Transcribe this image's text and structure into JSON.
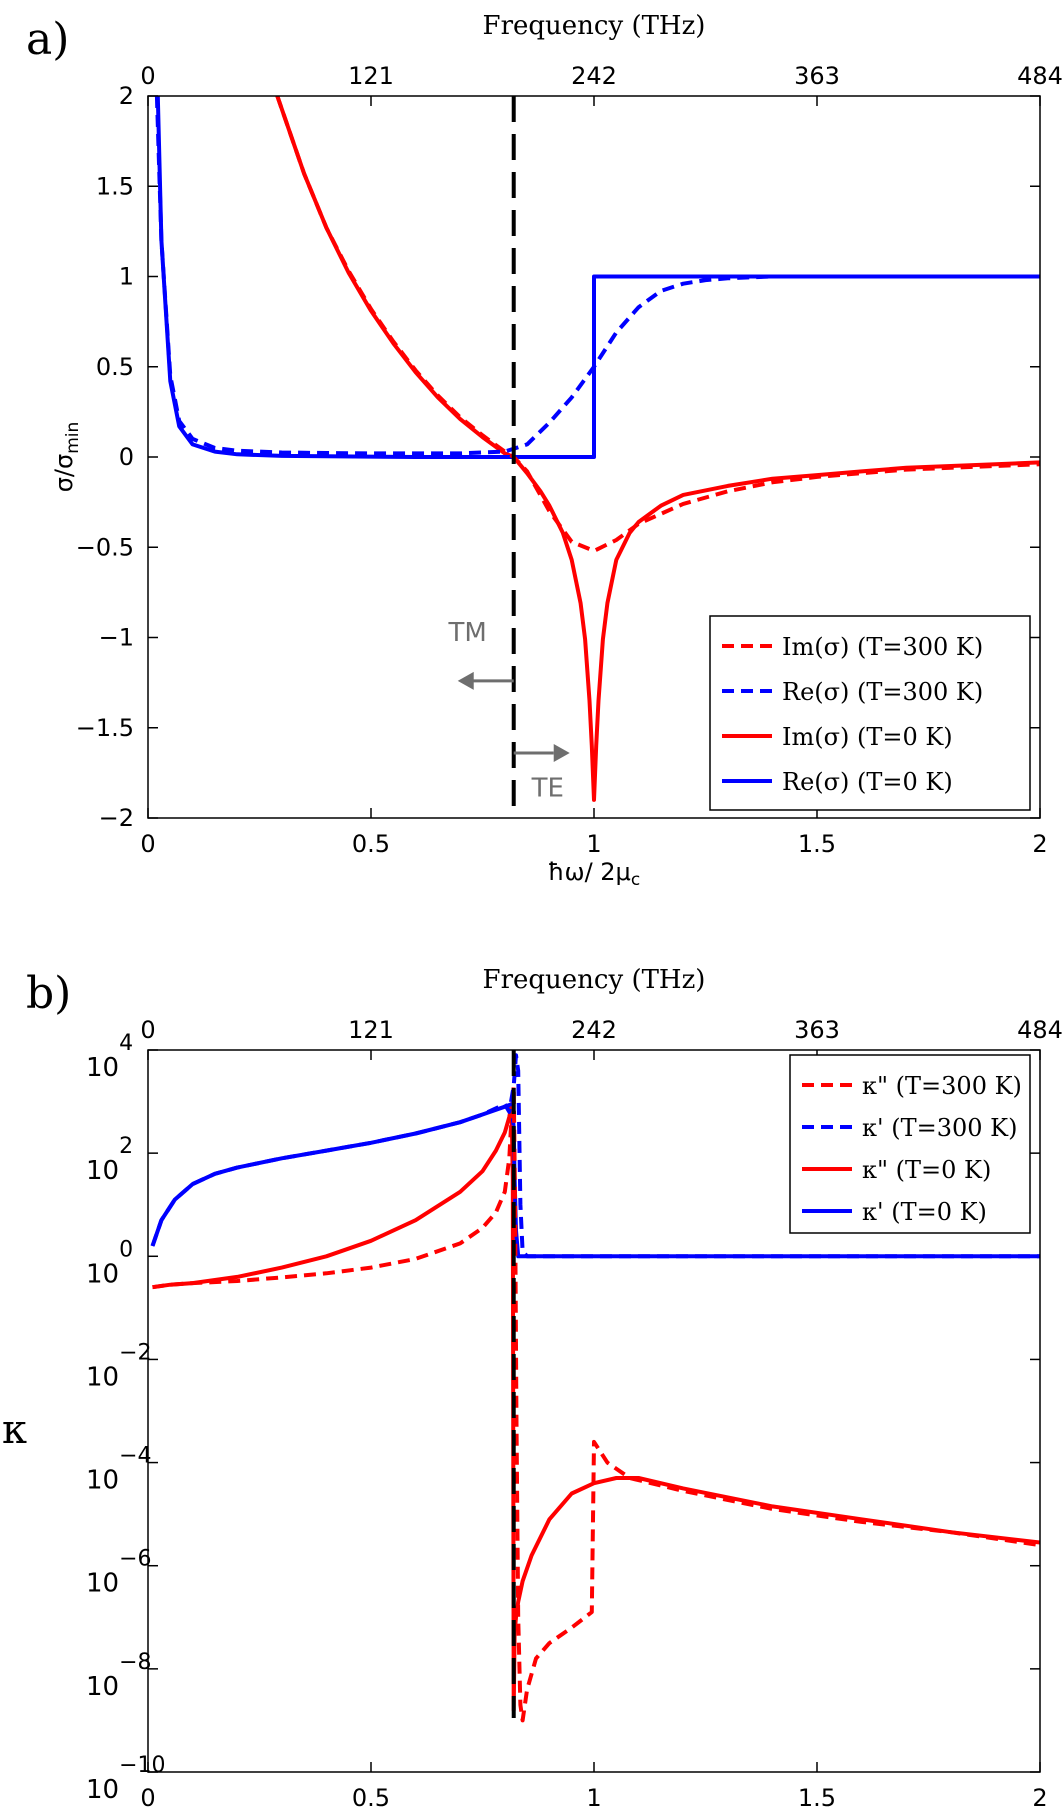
{
  "chart_data": [
    {
      "type": "line",
      "panel_label": "a)",
      "top_axis_label": "Frequency (THz)",
      "top_ticks": [
        "0",
        "121",
        "242",
        "363",
        "484"
      ],
      "xlabel": "ħω/ 2μ",
      "xlabel_sub": "c",
      "ylabel": "σ/σ",
      "ylabel_sub": "min",
      "xlim": [
        0,
        2
      ],
      "ylim": [
        -2,
        2
      ],
      "x_ticks": [
        "0",
        "0.5",
        "1",
        "1.5",
        "2"
      ],
      "y_ticks": [
        "−2",
        "−1.5",
        "−1",
        "−0.5",
        "0",
        "0.5",
        "1",
        "1.5",
        "2"
      ],
      "y_tick_values": [
        -2,
        -1.5,
        -1,
        -0.5,
        0,
        0.5,
        1,
        1.5,
        2
      ],
      "vline_x": 0.82,
      "annotations": {
        "tm": "TM",
        "te": "TE"
      },
      "colors": {
        "red": "#ff0000",
        "blue": "#0000ff",
        "black": "#000000",
        "gray": "#6e6e6e"
      },
      "series": [
        {
          "name": "Im(σ) (T=300 K)",
          "color": "#ff0000",
          "dash": true,
          "x": [
            0.29,
            0.35,
            0.4,
            0.45,
            0.5,
            0.55,
            0.6,
            0.65,
            0.7,
            0.75,
            0.8,
            0.82,
            0.85,
            0.9,
            0.95,
            1.0,
            1.05,
            1.1,
            1.2,
            1.3,
            1.4,
            1.5,
            1.6,
            1.7,
            1.8,
            1.9,
            2.0
          ],
          "y": [
            2.0,
            1.57,
            1.27,
            1.03,
            0.82,
            0.64,
            0.48,
            0.34,
            0.22,
            0.12,
            0.03,
            0.0,
            -0.08,
            -0.3,
            -0.47,
            -0.52,
            -0.46,
            -0.37,
            -0.26,
            -0.19,
            -0.14,
            -0.11,
            -0.09,
            -0.07,
            -0.06,
            -0.05,
            -0.04
          ]
        },
        {
          "name": "Re(σ) (T=300 K)",
          "color": "#0000ff",
          "dash": true,
          "x": [
            0.02,
            0.03,
            0.05,
            0.07,
            0.1,
            0.15,
            0.2,
            0.3,
            0.4,
            0.5,
            0.6,
            0.7,
            0.8,
            0.85,
            0.9,
            0.95,
            1.0,
            1.05,
            1.1,
            1.15,
            1.2,
            1.25,
            1.3,
            1.4,
            1.5,
            2.0
          ],
          "y": [
            2.0,
            1.2,
            0.45,
            0.2,
            0.1,
            0.05,
            0.035,
            0.025,
            0.022,
            0.02,
            0.02,
            0.02,
            0.03,
            0.07,
            0.19,
            0.33,
            0.5,
            0.69,
            0.83,
            0.92,
            0.96,
            0.98,
            0.99,
            1.0,
            1.0,
            1.0
          ]
        },
        {
          "name": "Im(σ) (T=0 K)",
          "color": "#ff0000",
          "dash": false,
          "x": [
            0.29,
            0.35,
            0.4,
            0.45,
            0.5,
            0.55,
            0.6,
            0.65,
            0.7,
            0.75,
            0.8,
            0.82,
            0.85,
            0.88,
            0.9,
            0.93,
            0.95,
            0.97,
            0.98,
            0.99,
            0.995,
            1.0,
            1.005,
            1.01,
            1.02,
            1.03,
            1.05,
            1.08,
            1.1,
            1.15,
            1.2,
            1.3,
            1.4,
            1.5,
            1.6,
            1.7,
            1.8,
            1.9,
            2.0
          ],
          "y": [
            2.0,
            1.57,
            1.27,
            1.02,
            0.81,
            0.63,
            0.47,
            0.33,
            0.21,
            0.11,
            0.02,
            0.0,
            -0.09,
            -0.19,
            -0.27,
            -0.42,
            -0.57,
            -0.81,
            -1.01,
            -1.35,
            -1.6,
            -1.9,
            -1.6,
            -1.35,
            -1.01,
            -0.81,
            -0.57,
            -0.42,
            -0.36,
            -0.27,
            -0.21,
            -0.16,
            -0.12,
            -0.1,
            -0.08,
            -0.06,
            -0.05,
            -0.04,
            -0.03
          ]
        },
        {
          "name": "Re(σ) (T=0 K)",
          "color": "#0000ff",
          "dash": false,
          "x": [
            0.022,
            0.03,
            0.05,
            0.07,
            0.1,
            0.15,
            0.2,
            0.3,
            0.4,
            0.6,
            0.8,
            1.0,
            1.0,
            1.5,
            2.0
          ],
          "y": [
            2.0,
            1.2,
            0.42,
            0.17,
            0.07,
            0.03,
            0.015,
            0.006,
            0.004,
            0.0,
            0.0,
            0.0,
            1.0,
            1.0,
            1.0
          ]
        }
      ]
    },
    {
      "type": "line",
      "panel_label": "b)",
      "top_axis_label": "Frequency (THz)",
      "top_ticks": [
        "0",
        "121",
        "242",
        "363",
        "484"
      ],
      "xlabel": "ħω/ 2μ",
      "xlabel_sub": "c",
      "ylabel": "κ",
      "yscale": "log",
      "xlim": [
        0,
        2
      ],
      "ylim_exp": [
        -10,
        4
      ],
      "x_ticks": [
        "0",
        "0.5",
        "1",
        "1.5",
        "2"
      ],
      "y_tick_base": "10",
      "y_tick_exps": [
        "−10",
        "−8",
        "−6",
        "−4",
        "−2",
        "0",
        "2",
        "4"
      ],
      "y_tick_values": [
        -10,
        -8,
        -6,
        -4,
        -2,
        0,
        2,
        4
      ],
      "vline_x": 0.82,
      "series": [
        {
          "name": "κ\" (T=300 K)",
          "color": "#ff0000",
          "dash": true,
          "x": [
            0.01,
            0.05,
            0.1,
            0.2,
            0.3,
            0.4,
            0.5,
            0.6,
            0.7,
            0.75,
            0.78,
            0.8,
            0.81,
            0.815,
            0.82,
            0.823,
            0.826,
            0.83,
            0.835,
            0.84,
            0.85,
            0.87,
            0.9,
            0.95,
            0.98,
            0.995,
            1.0,
            1.03,
            1.08,
            1.2,
            1.4,
            1.6,
            1.8,
            2.0
          ],
          "y": [
            -0.6,
            -0.55,
            -0.52,
            -0.48,
            -0.41,
            -0.33,
            -0.22,
            -0.05,
            0.25,
            0.55,
            0.85,
            1.25,
            1.9,
            2.7,
            3.3,
            1.0,
            -3.0,
            -7.0,
            -8.7,
            -9.0,
            -8.4,
            -7.8,
            -7.5,
            -7.2,
            -7.0,
            -6.9,
            -3.6,
            -4.0,
            -4.3,
            -4.55,
            -4.9,
            -5.15,
            -5.35,
            -5.6
          ]
        },
        {
          "name": "κ' (T=300 K)",
          "color": "#0000ff",
          "dash": true,
          "x": [
            0.01,
            0.03,
            0.06,
            0.1,
            0.15,
            0.2,
            0.3,
            0.4,
            0.5,
            0.6,
            0.7,
            0.75,
            0.8,
            0.81,
            0.82,
            0.825,
            0.83,
            0.835,
            0.84,
            0.85,
            2.0
          ],
          "y": [
            0.2,
            0.7,
            1.1,
            1.4,
            1.6,
            1.72,
            1.9,
            2.05,
            2.2,
            2.38,
            2.6,
            2.75,
            2.95,
            2.8,
            3.3,
            3.9,
            3.6,
            1.0,
            0.1,
            0.0,
            0.0
          ]
        },
        {
          "name": "κ\" (T=0 K)",
          "color": "#ff0000",
          "dash": false,
          "x": [
            0.01,
            0.05,
            0.1,
            0.2,
            0.3,
            0.4,
            0.5,
            0.6,
            0.7,
            0.75,
            0.78,
            0.8,
            0.81,
            0.815,
            0.818,
            0.82,
            0.822,
            0.825,
            0.83,
            0.84,
            0.86,
            0.9,
            0.95,
            1.0,
            1.05,
            1.1,
            1.2,
            1.4,
            1.6,
            1.8,
            2.0
          ],
          "y": [
            -0.6,
            -0.55,
            -0.52,
            -0.4,
            -0.22,
            0.0,
            0.3,
            0.7,
            1.25,
            1.65,
            2.05,
            2.4,
            2.7,
            2.95,
            1.5,
            -8.8,
            -7.3,
            -7.0,
            -6.7,
            -6.3,
            -5.8,
            -5.1,
            -4.6,
            -4.4,
            -4.3,
            -4.3,
            -4.5,
            -4.85,
            -5.1,
            -5.35,
            -5.55
          ]
        },
        {
          "name": "κ' (T=0 K)",
          "color": "#0000ff",
          "dash": false,
          "x": [
            0.01,
            0.03,
            0.06,
            0.1,
            0.15,
            0.2,
            0.3,
            0.4,
            0.5,
            0.6,
            0.7,
            0.75,
            0.8,
            0.815,
            0.82,
            0.822,
            0.825,
            0.83,
            2.0
          ],
          "y": [
            0.2,
            0.7,
            1.1,
            1.4,
            1.6,
            1.72,
            1.9,
            2.05,
            2.2,
            2.38,
            2.6,
            2.75,
            2.9,
            2.95,
            2.5,
            1.5,
            0.5,
            0.0,
            0.0
          ]
        }
      ]
    }
  ]
}
